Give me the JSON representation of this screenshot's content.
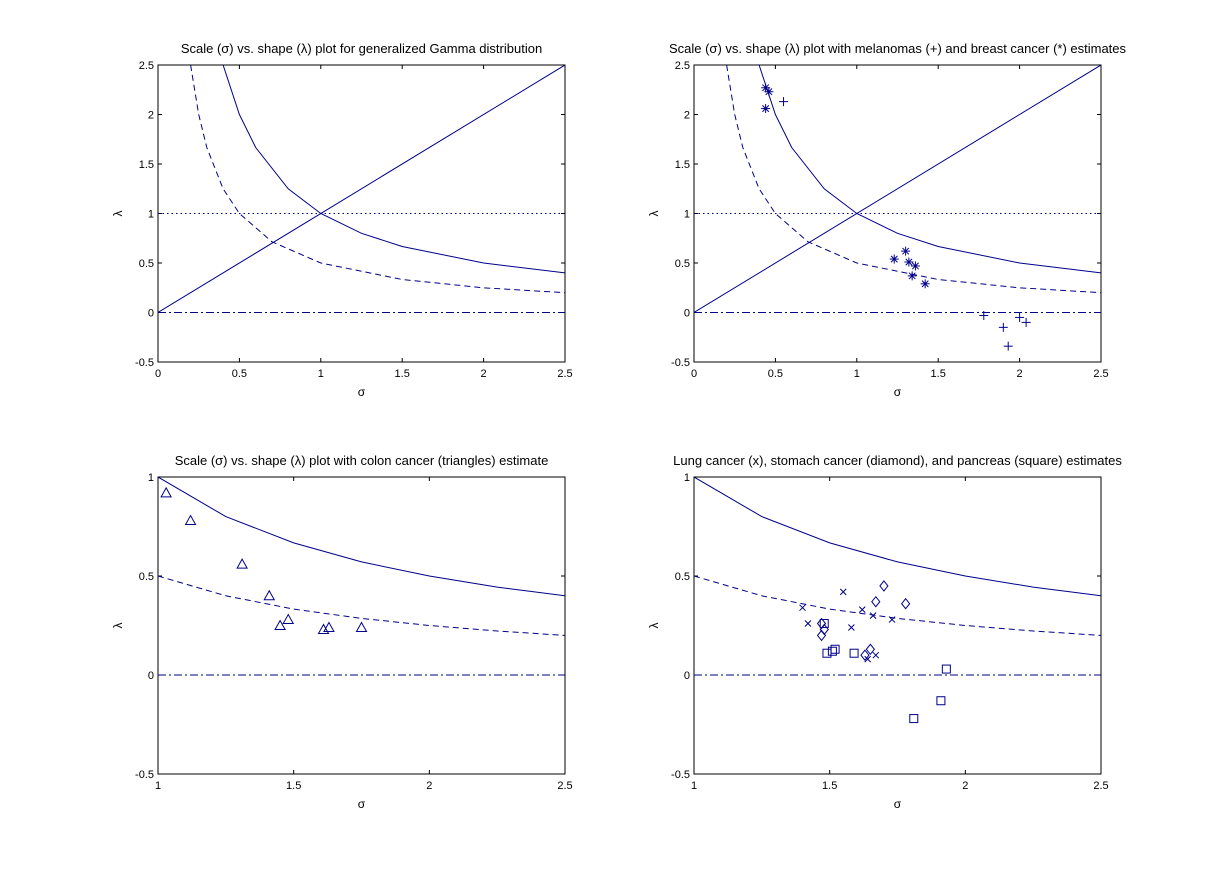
{
  "figure": {
    "background": "#ffffff",
    "line_color": "#00008b"
  },
  "chart_data": [
    {
      "type": "line",
      "title": "Scale (σ) vs. shape (λ) plot for generalized Gamma distribution",
      "xlabel": "σ",
      "ylabel": "λ",
      "xlim": [
        0,
        2.5
      ],
      "ylim": [
        -0.5,
        2.5
      ],
      "xticks": [
        "0",
        "0.5",
        "1",
        "1.5",
        "2",
        "2.5"
      ],
      "yticks": [
        "-0.5",
        "0",
        "0.5",
        "1",
        "1.5",
        "2",
        "2.5"
      ],
      "grid": false,
      "series": [
        {
          "style": "solid",
          "values": [
            [
              0.4,
              2.5
            ],
            [
              0.5,
              2.0
            ],
            [
              0.6,
              1.667
            ],
            [
              0.8,
              1.25
            ],
            [
              1.0,
              1.0
            ],
            [
              1.25,
              0.8
            ],
            [
              1.5,
              0.667
            ],
            [
              2.0,
              0.5
            ],
            [
              2.5,
              0.4
            ]
          ]
        },
        {
          "style": "dashed",
          "values": [
            [
              0.2,
              2.5
            ],
            [
              0.25,
              2.0
            ],
            [
              0.3,
              1.667
            ],
            [
              0.4,
              1.25
            ],
            [
              0.5,
              1.0
            ],
            [
              0.7,
              0.714
            ],
            [
              1.0,
              0.5
            ],
            [
              1.5,
              0.333
            ],
            [
              2.0,
              0.25
            ],
            [
              2.5,
              0.2
            ]
          ]
        },
        {
          "style": "solid",
          "values": [
            [
              0,
              0
            ],
            [
              2.5,
              2.5
            ]
          ]
        },
        {
          "style": "dotted",
          "values": [
            [
              0,
              1
            ],
            [
              2.5,
              1
            ]
          ]
        },
        {
          "style": "dashdot",
          "values": [
            [
              0,
              0
            ],
            [
              2.5,
              0
            ]
          ]
        }
      ]
    },
    {
      "type": "scatter",
      "title": "Scale (σ) vs. shape (λ) plot with melanomas (+) and breast cancer (*) estimates",
      "xlabel": "σ",
      "ylabel": "λ",
      "xlim": [
        0,
        2.5
      ],
      "ylim": [
        -0.5,
        2.5
      ],
      "xticks": [
        "0",
        "0.5",
        "1",
        "1.5",
        "2",
        "2.5"
      ],
      "yticks": [
        "-0.5",
        "0",
        "0.5",
        "1",
        "1.5",
        "2",
        "2.5"
      ],
      "grid": false,
      "series": [
        {
          "style": "solid",
          "values": [
            [
              0.4,
              2.5
            ],
            [
              0.5,
              2.0
            ],
            [
              0.6,
              1.667
            ],
            [
              0.8,
              1.25
            ],
            [
              1.0,
              1.0
            ],
            [
              1.25,
              0.8
            ],
            [
              1.5,
              0.667
            ],
            [
              2.0,
              0.5
            ],
            [
              2.5,
              0.4
            ]
          ]
        },
        {
          "style": "dashed",
          "values": [
            [
              0.2,
              2.5
            ],
            [
              0.25,
              2.0
            ],
            [
              0.3,
              1.667
            ],
            [
              0.4,
              1.25
            ],
            [
              0.5,
              1.0
            ],
            [
              0.7,
              0.714
            ],
            [
              1.0,
              0.5
            ],
            [
              1.5,
              0.333
            ],
            [
              2.0,
              0.25
            ],
            [
              2.5,
              0.2
            ]
          ]
        },
        {
          "style": "solid",
          "values": [
            [
              0,
              0
            ],
            [
              2.5,
              2.5
            ]
          ]
        },
        {
          "style": "dotted",
          "values": [
            [
              0,
              1
            ],
            [
              2.5,
              1
            ]
          ]
        },
        {
          "style": "dashdot",
          "values": [
            [
              0,
              0
            ],
            [
              2.5,
              0
            ]
          ]
        }
      ],
      "points": [
        {
          "marker": "plus",
          "values": [
            [
              0.55,
              2.13
            ],
            [
              1.78,
              -0.03
            ],
            [
              2.0,
              -0.05
            ],
            [
              2.04,
              -0.1
            ],
            [
              1.9,
              -0.15
            ],
            [
              1.93,
              -0.34
            ]
          ]
        },
        {
          "marker": "star",
          "values": [
            [
              0.44,
              2.27
            ],
            [
              0.46,
              2.23
            ],
            [
              0.44,
              2.06
            ],
            [
              1.3,
              0.62
            ],
            [
              1.23,
              0.54
            ],
            [
              1.32,
              0.51
            ],
            [
              1.36,
              0.47
            ],
            [
              1.34,
              0.37
            ],
            [
              1.42,
              0.29
            ]
          ]
        }
      ]
    },
    {
      "type": "scatter",
      "title": "Scale (σ) vs. shape (λ) plot with colon cancer (triangles) estimate",
      "xlabel": "σ",
      "ylabel": "λ",
      "xlim": [
        1,
        2.5
      ],
      "ylim": [
        -0.5,
        1
      ],
      "xticks": [
        "1",
        "1.5",
        "2",
        "2.5"
      ],
      "yticks": [
        "-0.5",
        "0",
        "0.5",
        "1"
      ],
      "grid": false,
      "series": [
        {
          "style": "solid",
          "values": [
            [
              1.0,
              1.0
            ],
            [
              1.25,
              0.8
            ],
            [
              1.5,
              0.667
            ],
            [
              1.75,
              0.571
            ],
            [
              2.0,
              0.5
            ],
            [
              2.25,
              0.444
            ],
            [
              2.5,
              0.4
            ]
          ]
        },
        {
          "style": "dashed",
          "values": [
            [
              1.0,
              0.5
            ],
            [
              1.25,
              0.4
            ],
            [
              1.5,
              0.333
            ],
            [
              1.75,
              0.286
            ],
            [
              2.0,
              0.25
            ],
            [
              2.25,
              0.222
            ],
            [
              2.5,
              0.2
            ]
          ]
        },
        {
          "style": "dashdot",
          "values": [
            [
              1,
              0
            ],
            [
              2.5,
              0
            ]
          ]
        }
      ],
      "points": [
        {
          "marker": "triangle",
          "values": [
            [
              1.03,
              0.92
            ],
            [
              1.12,
              0.78
            ],
            [
              1.31,
              0.56
            ],
            [
              1.41,
              0.4
            ],
            [
              1.45,
              0.25
            ],
            [
              1.48,
              0.28
            ],
            [
              1.61,
              0.23
            ],
            [
              1.63,
              0.24
            ],
            [
              1.75,
              0.24
            ]
          ]
        }
      ]
    },
    {
      "type": "scatter",
      "title": "Lung cancer (x), stomach cancer (diamond), and pancreas (square) estimates",
      "xlabel": "σ",
      "ylabel": "λ",
      "xlim": [
        1,
        2.5
      ],
      "ylim": [
        -0.5,
        1
      ],
      "xticks": [
        "1",
        "1.5",
        "2",
        "2.5"
      ],
      "yticks": [
        "-0.5",
        "0",
        "0.5",
        "1"
      ],
      "grid": false,
      "series": [
        {
          "style": "solid",
          "values": [
            [
              1.0,
              1.0
            ],
            [
              1.25,
              0.8
            ],
            [
              1.5,
              0.667
            ],
            [
              1.75,
              0.571
            ],
            [
              2.0,
              0.5
            ],
            [
              2.25,
              0.444
            ],
            [
              2.5,
              0.4
            ]
          ]
        },
        {
          "style": "dashed",
          "values": [
            [
              1.0,
              0.5
            ],
            [
              1.25,
              0.4
            ],
            [
              1.5,
              0.333
            ],
            [
              1.75,
              0.286
            ],
            [
              2.0,
              0.25
            ],
            [
              2.25,
              0.222
            ],
            [
              2.5,
              0.2
            ]
          ]
        },
        {
          "style": "dashdot",
          "values": [
            [
              1,
              0
            ],
            [
              2.5,
              0
            ]
          ]
        }
      ],
      "points": [
        {
          "marker": "x",
          "values": [
            [
              1.4,
              0.34
            ],
            [
              1.42,
              0.26
            ],
            [
              1.55,
              0.42
            ],
            [
              1.58,
              0.24
            ],
            [
              1.62,
              0.33
            ],
            [
              1.66,
              0.3
            ],
            [
              1.73,
              0.28
            ],
            [
              1.64,
              0.08
            ],
            [
              1.67,
              0.1
            ]
          ]
        },
        {
          "marker": "diamond",
          "values": [
            [
              1.7,
              0.45
            ],
            [
              1.67,
              0.37
            ],
            [
              1.78,
              0.36
            ],
            [
              1.47,
              0.26
            ],
            [
              1.48,
              0.23
            ],
            [
              1.47,
              0.2
            ],
            [
              1.65,
              0.13
            ],
            [
              1.63,
              0.1
            ]
          ]
        },
        {
          "marker": "square",
          "values": [
            [
              1.48,
              0.26
            ],
            [
              1.49,
              0.11
            ],
            [
              1.51,
              0.12
            ],
            [
              1.52,
              0.13
            ],
            [
              1.59,
              0.11
            ],
            [
              1.93,
              0.03
            ],
            [
              1.91,
              -0.13
            ],
            [
              1.81,
              -0.22
            ]
          ]
        }
      ]
    }
  ]
}
